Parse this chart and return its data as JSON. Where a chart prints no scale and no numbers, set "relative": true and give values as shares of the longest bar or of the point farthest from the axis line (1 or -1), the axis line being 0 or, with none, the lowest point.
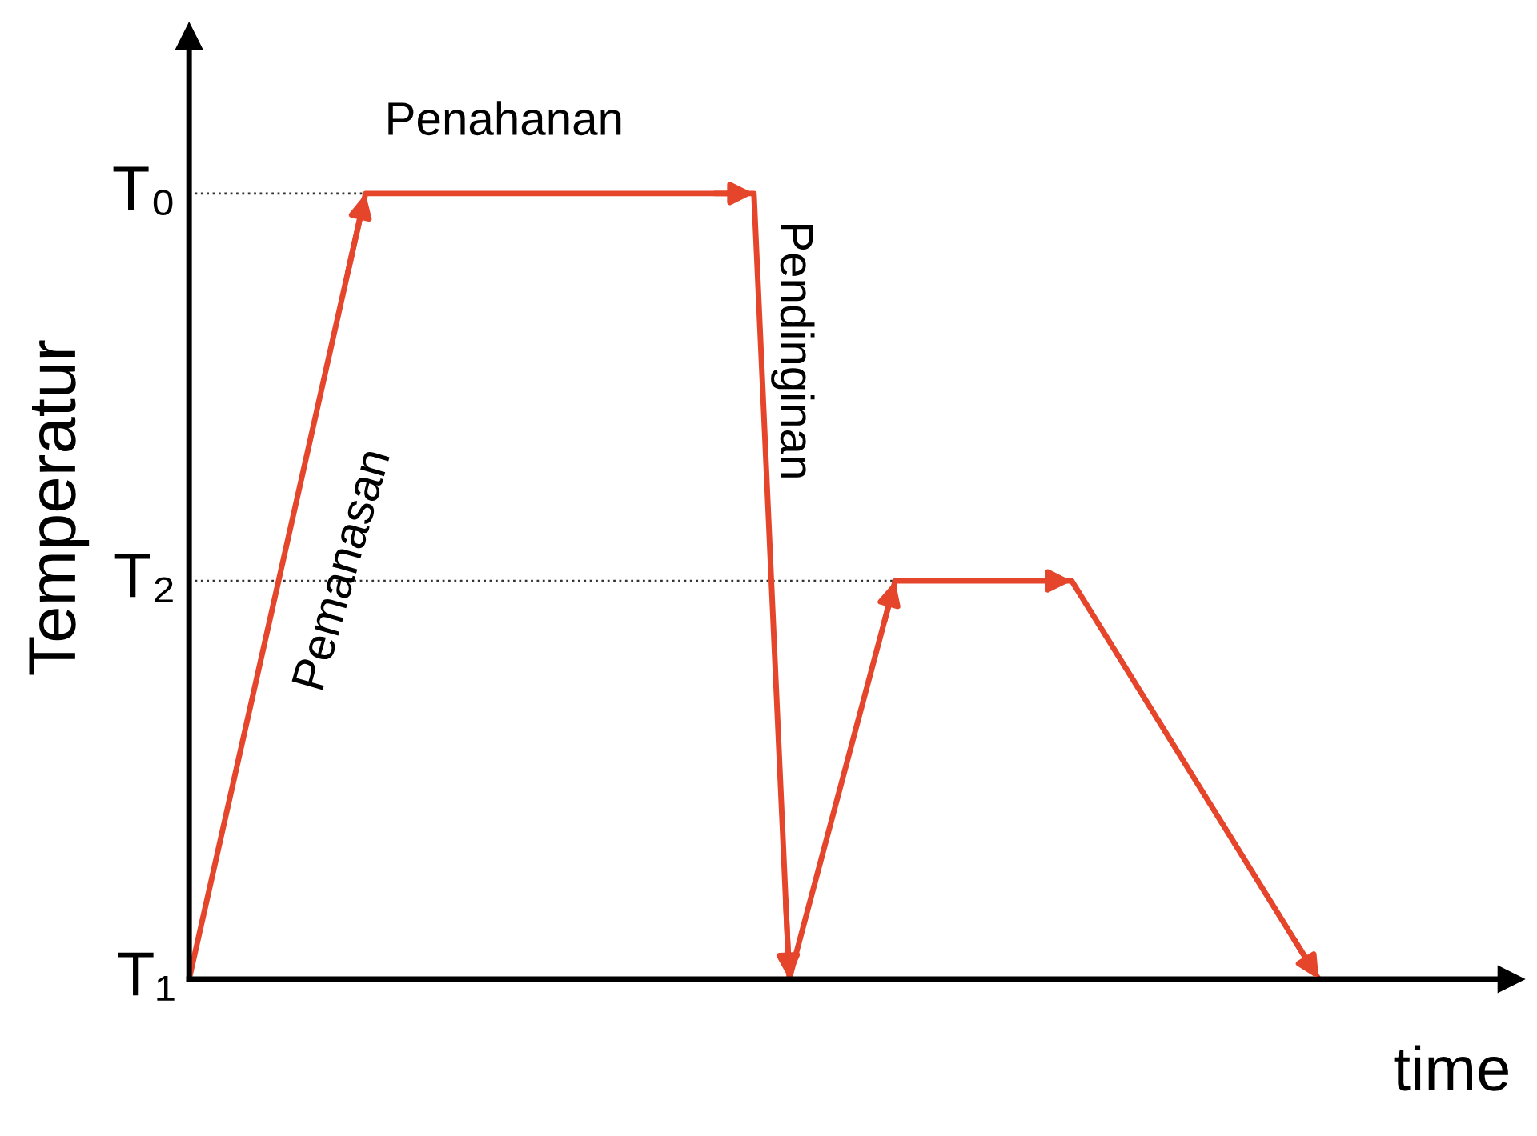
{
  "chart_data": {
    "type": "line",
    "relative": true,
    "xlabel": "time",
    "ylabel": "Temperatur",
    "categories": [
      null,
      null,
      null,
      null,
      null,
      null,
      null,
      null,
      null,
      null,
      null,
      null,
      null,
      null,
      null,
      null,
      null,
      null,
      null,
      null,
      null,
      null,
      null,
      null,
      null,
      null,
      null,
      null,
      null,
      null,
      null,
      null,
      null
    ],
    "series": [
      {
        "color": "#e5452b",
        "values": [
          0,
          null,
          null,
          null,
          null,
          1,
          null,
          null,
          null,
          null,
          null,
          null,
          null,
          null,
          null,
          null,
          1,
          0,
          null,
          null,
          0.507,
          null,
          null,
          null,
          null,
          0.507,
          null,
          null,
          null,
          null,
          null,
          null,
          0
        ]
      }
    ],
    "ref_lines": [
      {
        "axis": "y",
        "value": 1,
        "label": "T₀",
        "line_style": "dotted",
        "color": "#333333"
      },
      {
        "axis": "y",
        "value": 0.507,
        "label": "T₂",
        "line_style": "dotted",
        "color": "#333333"
      }
    ],
    "annotations": [
      "Penahanan",
      "Pemanasan",
      "Pendinginan",
      "T₁"
    ],
    "legend": false,
    "marker": "none",
    "line_style": "solid"
  }
}
